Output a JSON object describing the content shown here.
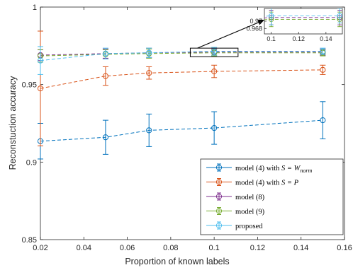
{
  "chart_data": {
    "type": "line",
    "xlabel": "Proportion of known labels",
    "ylabel": "Reconstuction accuracy",
    "xlim": [
      0.02,
      0.16
    ],
    "ylim": [
      0.85,
      1.0
    ],
    "x_ticks": [
      "0.02",
      "0.04",
      "0.06",
      "0.08",
      "0.1",
      "0.12",
      "0.14",
      "0.16"
    ],
    "y_ticks": [
      "0.85",
      "0.9",
      "0.95",
      "1"
    ],
    "x_tick_values": [
      0.02,
      0.04,
      0.06,
      0.08,
      0.1,
      0.12,
      0.14,
      0.16
    ],
    "y_tick_values": [
      0.85,
      0.9,
      0.95,
      1.0
    ],
    "grid": false,
    "legend_placement": "bottom-right",
    "series": [
      {
        "name": "model (4) with S = W_norm",
        "legend_prefix": "model (4) with ",
        "legend_math": "S = W",
        "legend_sub": "norm",
        "color": "#0072BD",
        "x": [
          0.02,
          0.05,
          0.07,
          0.1,
          0.15
        ],
        "y": [
          0.9135,
          0.916,
          0.9205,
          0.922,
          0.927
        ],
        "err": [
          0.0115,
          0.011,
          0.0105,
          0.0105,
          0.012
        ]
      },
      {
        "name": "model (4) with S = P",
        "legend_prefix": "model (4) with ",
        "legend_math": "S = P",
        "legend_sub": "",
        "color": "#D95319",
        "x": [
          0.02,
          0.05,
          0.07,
          0.1,
          0.15
        ],
        "y": [
          0.9475,
          0.9555,
          0.9575,
          0.9585,
          0.9595
        ],
        "err": [
          0.037,
          0.006,
          0.004,
          0.004,
          0.003
        ]
      },
      {
        "name": "model (8)",
        "legend_prefix": "model (8)",
        "legend_math": "",
        "legend_sub": "",
        "color": "#7E2F8E",
        "x": [
          0.02,
          0.05,
          0.07,
          0.1,
          0.15
        ],
        "y": [
          0.969,
          0.97,
          0.9705,
          0.971,
          0.971
        ],
        "err": [
          0.0035,
          0.003,
          0.003,
          0.002,
          0.002
        ]
      },
      {
        "name": "model (9)",
        "legend_prefix": "model (9)",
        "legend_math": "",
        "legend_sub": "",
        "color": "#77AC30",
        "x": [
          0.02,
          0.05,
          0.07,
          0.1,
          0.15
        ],
        "y": [
          0.9685,
          0.9695,
          0.97,
          0.9705,
          0.9705
        ],
        "err": [
          0.004,
          0.003,
          0.003,
          0.002,
          0.002
        ]
      },
      {
        "name": "proposed",
        "legend_prefix": "proposed",
        "legend_math": "",
        "legend_sub": "",
        "color": "#4DBEEE",
        "x": [
          0.02,
          0.05,
          0.07,
          0.1,
          0.15
        ],
        "y": [
          0.9655,
          0.97,
          0.9705,
          0.9715,
          0.9715
        ],
        "err": [
          0.009,
          0.0035,
          0.003,
          0.0025,
          0.002
        ]
      }
    ],
    "inset": {
      "xlim": [
        0.095,
        0.152
      ],
      "ylim": [
        0.9665,
        0.9735
      ],
      "x_ticks": [
        "0.1",
        "0.12",
        "0.14"
      ],
      "x_tick_values": [
        0.1,
        0.12,
        0.14
      ],
      "y_ticks": [
        "0.968",
        "0.97"
      ],
      "y_tick_values": [
        0.968,
        0.97
      ],
      "zoom_region": {
        "x": [
          0.089,
          0.111
        ],
        "y": [
          0.968,
          0.9735
        ]
      }
    }
  }
}
